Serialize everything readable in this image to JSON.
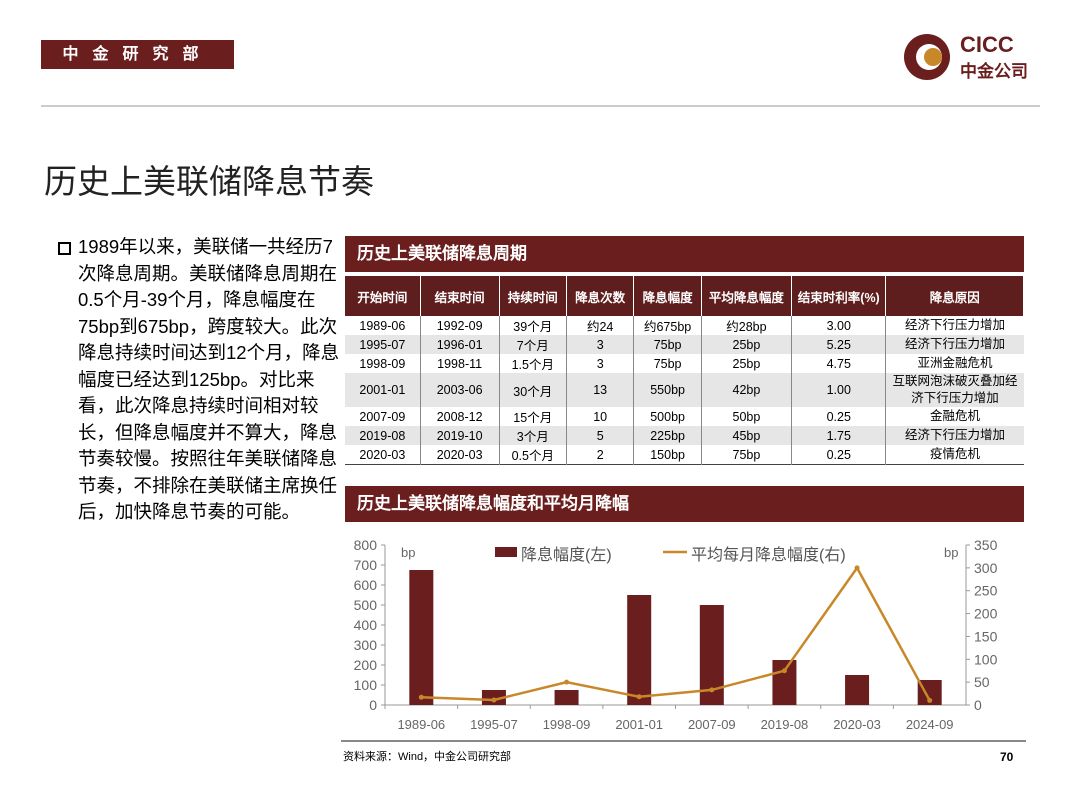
{
  "header": {
    "dept": "中金研究部",
    "logo_text": "CICC",
    "logo_sub": "中金公司"
  },
  "title": "历史上美联储降息节奏",
  "bullet": "1989年以来，美联储一共经历7次降息周期。美联储降息周期在0.5个月-39个月，降息幅度在75bp到675bp，跨度较大。此次降息持续时间达到12个月，降息幅度已经达到125bp。对比来看，此次降息持续时间相对较长，但降息幅度并不算大，降息节奏较慢。按照往年美联储降息节奏，不排除在美联储主席换任后，加快降息节奏的可能。",
  "table": {
    "title": "历史上美联储降息周期",
    "headers": [
      "开始时间",
      "结束时间",
      "持续时间",
      "降息次数",
      "降息幅度",
      "平均降息幅度",
      "结束时利率(%)",
      "降息原因"
    ],
    "rows": [
      [
        "1989-06",
        "1992-09",
        "39个月",
        "约24",
        "约675bp",
        "约28bp",
        "3.00",
        "经济下行压力增加"
      ],
      [
        "1995-07",
        "1996-01",
        "7个月",
        "3",
        "75bp",
        "25bp",
        "5.25",
        "经济下行压力增加"
      ],
      [
        "1998-09",
        "1998-11",
        "1.5个月",
        "3",
        "75bp",
        "25bp",
        "4.75",
        "亚洲金融危机"
      ],
      [
        "2001-01",
        "2003-06",
        "30个月",
        "13",
        "550bp",
        "42bp",
        "1.00",
        "互联网泡沫破灭叠加经济下行压力增加"
      ],
      [
        "2007-09",
        "2008-12",
        "15个月",
        "10",
        "500bp",
        "50bp",
        "0.25",
        "金融危机"
      ],
      [
        "2019-08",
        "2019-10",
        "3个月",
        "5",
        "225bp",
        "45bp",
        "1.75",
        "经济下行压力增加"
      ],
      [
        "2020-03",
        "2020-03",
        "0.5个月",
        "2",
        "150bp",
        "75bp",
        "0.25",
        "疫情危机"
      ]
    ]
  },
  "chart_data": {
    "type": "bar",
    "title": "历史上美联储降息幅度和平均月降幅",
    "categories": [
      "1989-06",
      "1995-07",
      "1998-09",
      "2001-01",
      "2007-09",
      "2019-08",
      "2020-03",
      "2024-09"
    ],
    "series": [
      {
        "name": "降息幅度(左)",
        "type": "bar",
        "axis": "left",
        "values": [
          675,
          75,
          75,
          550,
          500,
          225,
          150,
          125
        ],
        "color": "#6b1e1e"
      },
      {
        "name": "平均每月降息幅度(右)",
        "type": "line",
        "axis": "right",
        "values": [
          17,
          11,
          50,
          18,
          33,
          75,
          300,
          10
        ],
        "color": "#c8882a"
      }
    ],
    "ylim_left": [
      0,
      800
    ],
    "yticks_left": [
      "0",
      "100",
      "200",
      "300",
      "400",
      "500",
      "600",
      "700",
      "800"
    ],
    "ylim_right": [
      0,
      350
    ],
    "yticks_right": [
      "0",
      "50",
      "100",
      "150",
      "200",
      "250",
      "300",
      "350"
    ],
    "ylabel_left": "bp",
    "ylabel_right": "bp",
    "legend": "top-center"
  },
  "footer": {
    "source": "资料来源：Wind，中金公司研究部",
    "page": "70"
  }
}
